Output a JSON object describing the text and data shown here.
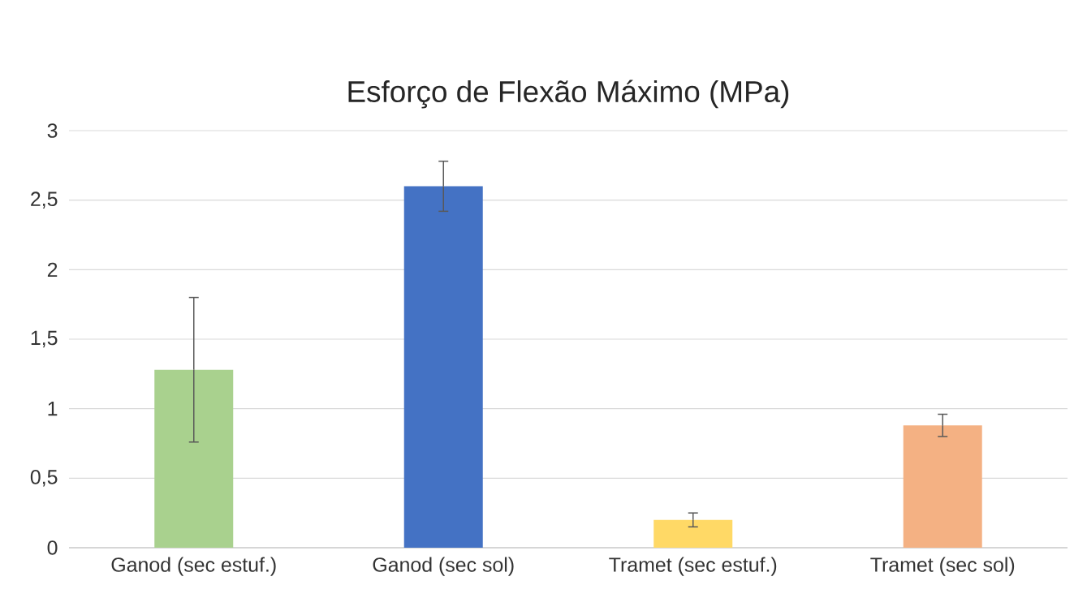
{
  "chart_data": {
    "type": "bar",
    "title": "Esforço de Flexão Máximo (MPa)",
    "categories": [
      "Ganod (sec estuf.)",
      "Ganod (sec sol)",
      "Tramet (sec estuf.)",
      "Tramet (sec sol)"
    ],
    "values": [
      1.28,
      2.6,
      0.2,
      0.88
    ],
    "errors": [
      0.52,
      0.18,
      0.05,
      0.08
    ],
    "colors": [
      "#a9d18e",
      "#4472c4",
      "#ffd966",
      "#f4b183"
    ],
    "ylim": [
      0,
      3
    ],
    "yticks": [
      0,
      {
        "value": 0.5,
        "label": "0,5"
      },
      1,
      {
        "value": 1.5,
        "label": "1,5"
      },
      2,
      {
        "value": 2.5,
        "label": "2,5"
      },
      3
    ],
    "grid": "y"
  }
}
